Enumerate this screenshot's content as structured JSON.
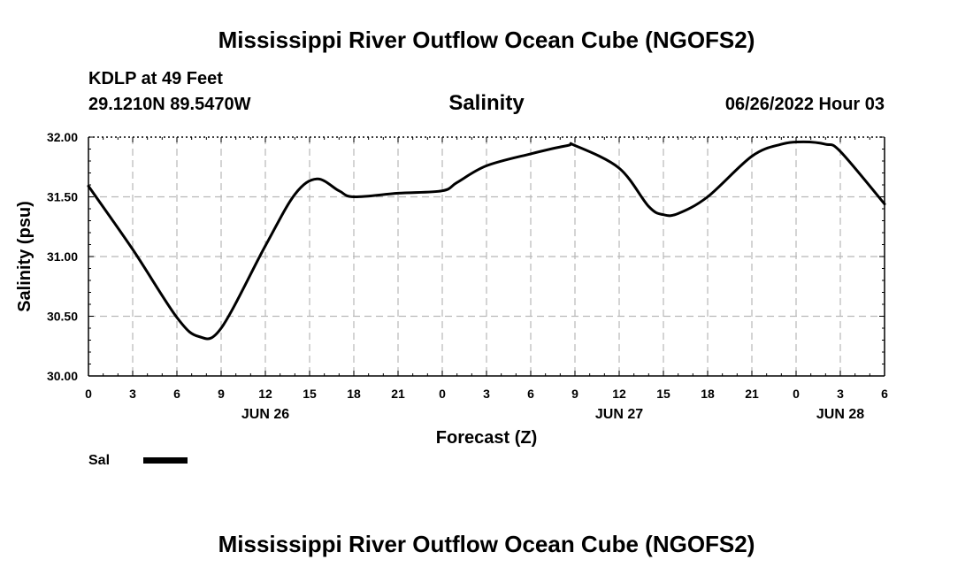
{
  "chart_data": {
    "type": "line",
    "title": "Mississippi River Outflow Ocean Cube (NGOFS2)",
    "footer_title": "Mississippi River Outflow Ocean Cube (NGOFS2)",
    "subtitle": "Salinity",
    "station": "KDLP at 49 Feet",
    "location": "29.1210N  89.5470W",
    "run_time": "06/26/2022 Hour 03",
    "xlabel": "Forecast (Z)",
    "ylabel": "Salinity (psu)",
    "xlim": [
      0,
      54
    ],
    "ylim": [
      30.0,
      32.0
    ],
    "x_ticks": [
      0,
      3,
      6,
      9,
      12,
      15,
      18,
      21,
      24,
      27,
      30,
      33,
      36,
      39,
      42,
      45,
      48,
      51,
      54
    ],
    "x_tick_labels": [
      "0",
      "3",
      "6",
      "9",
      "12",
      "15",
      "18",
      "21",
      "0",
      "3",
      "6",
      "9",
      "12",
      "15",
      "18",
      "21",
      "0",
      "3",
      "6"
    ],
    "y_ticks": [
      30.0,
      30.5,
      31.0,
      31.5,
      32.0
    ],
    "y_tick_labels": [
      "30.00",
      "30.50",
      "31.00",
      "31.50",
      "32.00"
    ],
    "date_labels": [
      {
        "x": 12,
        "label": "JUN 26"
      },
      {
        "x": 36,
        "label": "JUN 27"
      },
      {
        "x": 51,
        "label": "JUN 28"
      }
    ],
    "grid": true,
    "legend": "bottom-left",
    "series": [
      {
        "name": "Sal",
        "color": "#000000",
        "x": [
          0,
          3,
          6,
          7.5,
          9,
          12,
          14,
          15.5,
          17,
          18,
          21,
          24,
          25,
          27,
          30,
          32.5,
          33,
          36,
          38,
          39,
          40,
          42,
          45,
          47,
          48.5,
          50,
          51,
          54
        ],
        "values": [
          31.59,
          31.06,
          30.49,
          30.33,
          30.4,
          31.09,
          31.52,
          31.65,
          31.55,
          31.5,
          31.53,
          31.55,
          31.62,
          31.76,
          31.86,
          31.93,
          31.93,
          31.74,
          31.42,
          31.35,
          31.36,
          31.5,
          31.84,
          31.94,
          31.96,
          31.94,
          31.88,
          31.44
        ]
      }
    ]
  }
}
